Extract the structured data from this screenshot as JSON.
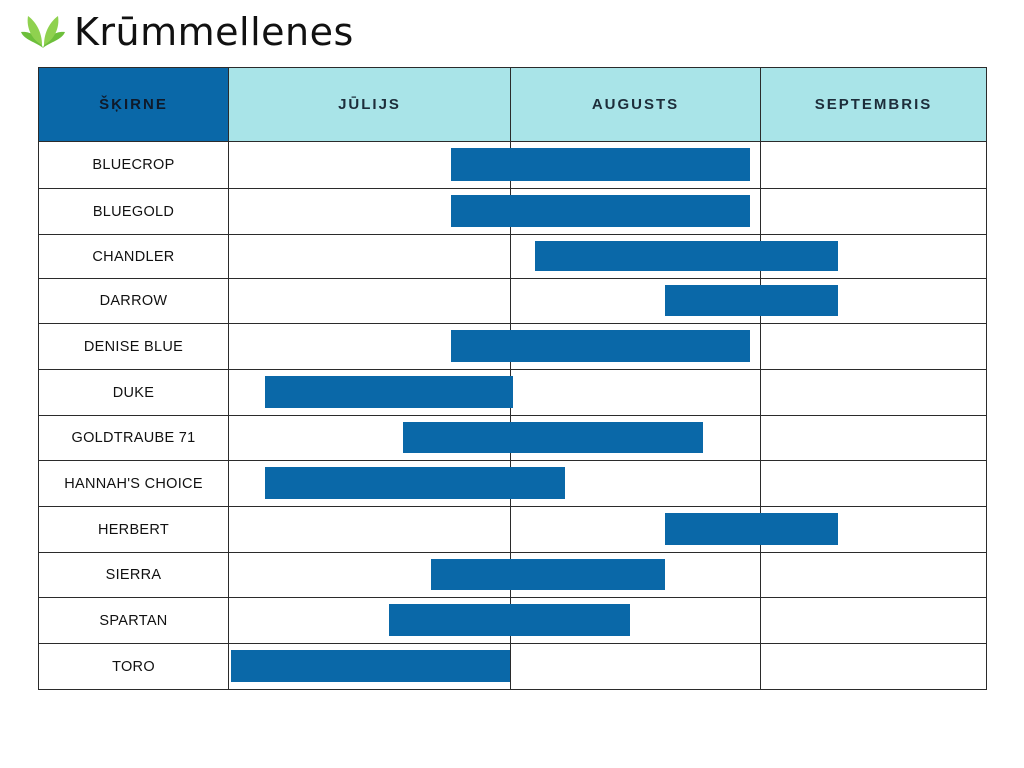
{
  "brand": {
    "name": "Krūmmellenes"
  },
  "colors": {
    "bar": "#0a68a8",
    "variety_header": "#0a68a8",
    "month_header": "#a9e4e8",
    "grid": "#2b2b2b"
  },
  "chart_data": {
    "type": "gantt",
    "row_header": "ŠĶIRNE",
    "months": [
      "JŪLIJS",
      "AUGUSTS",
      "SEPTEMBRIS"
    ],
    "x_unit": "month (0 = 1 July, 1 = 1 August, 2 = 1 September, 2.9 = end of table)",
    "x_range": [
      0,
      2.9
    ],
    "rows": [
      {
        "variety": "BLUECROP",
        "start": 0.79,
        "end": 1.96
      },
      {
        "variety": "BLUEGOLD",
        "start": 0.79,
        "end": 1.96
      },
      {
        "variety": "CHANDLER",
        "start": 1.1,
        "end": 2.31
      },
      {
        "variety": "DARROW",
        "start": 1.62,
        "end": 2.31
      },
      {
        "variety": "DENISE BLUE",
        "start": 0.79,
        "end": 1.96
      },
      {
        "variety": "DUKE",
        "start": 0.13,
        "end": 1.01
      },
      {
        "variety": "GOLDTRAUBE 71",
        "start": 0.62,
        "end": 1.77
      },
      {
        "variety": "HANNAH'S CHOICE",
        "start": 0.13,
        "end": 1.22
      },
      {
        "variety": "HERBERT",
        "start": 1.62,
        "end": 2.31
      },
      {
        "variety": "SIERRA",
        "start": 0.72,
        "end": 1.62
      },
      {
        "variety": "SPARTAN",
        "start": 0.57,
        "end": 1.48
      },
      {
        "variety": "TORO",
        "start": 0.01,
        "end": 1.0
      }
    ]
  }
}
